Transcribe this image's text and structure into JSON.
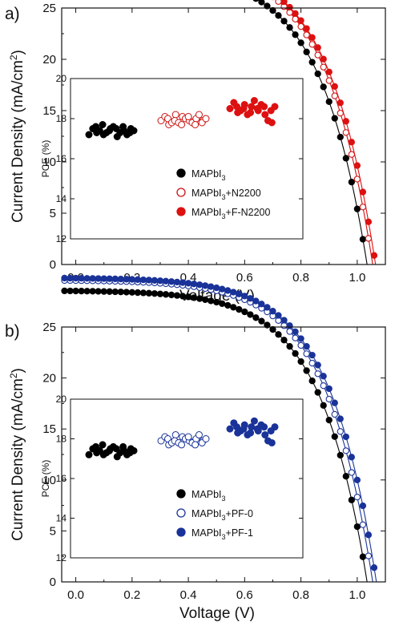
{
  "chart_data": [
    {
      "panel_label": "a)",
      "type": "line",
      "xlabel": "Voltage (V)",
      "ylabel": "Current Density (mA/cm",
      "ylabel_sup": "2",
      "ylabel_end": ")",
      "xlim": [
        -0.05,
        1.1
      ],
      "ylim": [
        0,
        25
      ],
      "xticks": [
        "0.0",
        "0.2",
        "0.4",
        "0.6",
        "0.8",
        "1.0"
      ],
      "yticks": [
        "0",
        "5",
        "10",
        "15",
        "20",
        "25"
      ],
      "series": [
        {
          "name": "MAPbI3",
          "color": "#000000",
          "marker": "filled",
          "jsc": 22.4,
          "voc": 1.035,
          "knee": 0.78,
          "curvature": 6,
          "pce": [
            17.2,
            17.5,
            17.3,
            17.6,
            17.4,
            17.2,
            17.7,
            17.3,
            17.5,
            17.4,
            17.6,
            17.1,
            17.5,
            17.3,
            17.4,
            17.6,
            17.2,
            17.5,
            17.3,
            17.4
          ]
        },
        {
          "name": "MAPbI3+N2200",
          "color": "#cc1111",
          "marker": "open",
          "jsc": 22.8,
          "voc": 1.055,
          "knee": 0.81,
          "curvature": 6,
          "pce": [
            17.9,
            18.1,
            17.7,
            18.0,
            17.8,
            18.2,
            17.9,
            17.8,
            18.1,
            17.7,
            18.0,
            17.9,
            18.1,
            17.8,
            18.0,
            17.7,
            18.2,
            17.9,
            17.8,
            18.0
          ]
        },
        {
          "name": "MAPbI3+F-N2200",
          "color": "#dd1111",
          "marker": "filled",
          "jsc": 23.0,
          "voc": 1.065,
          "knee": 0.82,
          "curvature": 6,
          "pce": [
            18.5,
            18.8,
            18.3,
            18.6,
            18.4,
            18.7,
            18.5,
            18.2,
            18.6,
            18.3,
            18.9,
            18.4,
            18.5,
            18.7,
            18.2,
            18.6,
            17.9,
            17.8,
            18.4,
            18.6
          ]
        }
      ],
      "inset": {
        "ylabel": "PCE (%)",
        "ylim": [
          12,
          20
        ],
        "yticks": [
          "12",
          "14",
          "16",
          "18",
          "20"
        ],
        "legend": [
          {
            "prefix": "MAPbI",
            "sub": "3",
            "suffix": ""
          },
          {
            "prefix": "MAPbI",
            "sub": "3",
            "suffix": "+N2200"
          },
          {
            "prefix": "MAPbI",
            "sub": "3",
            "suffix": "+F-N2200"
          }
        ]
      }
    },
    {
      "panel_label": "b)",
      "type": "line",
      "xlabel": "Voltage (V)",
      "ylabel": "Current Density (mA/cm",
      "ylabel_sup": "2",
      "ylabel_end": ")",
      "xlim": [
        -0.05,
        1.1
      ],
      "ylim": [
        0,
        25
      ],
      "xticks": [
        "0.0",
        "0.2",
        "0.4",
        "0.6",
        "0.8",
        "1.0"
      ],
      "yticks": [
        "0",
        "5",
        "10",
        "15",
        "20",
        "25"
      ],
      "series": [
        {
          "name": "MAPbI3",
          "color": "#000000",
          "marker": "filled",
          "jsc": 22.4,
          "voc": 1.035,
          "knee": 0.78,
          "curvature": 6,
          "pce": [
            17.2,
            17.5,
            17.3,
            17.6,
            17.4,
            17.2,
            17.7,
            17.3,
            17.5,
            17.4,
            17.6,
            17.1,
            17.5,
            17.3,
            17.4,
            17.6,
            17.2,
            17.5,
            17.3,
            17.4
          ]
        },
        {
          "name": "MAPbI3+PF-0",
          "color": "#1a3399",
          "marker": "open",
          "jsc": 22.8,
          "voc": 1.055,
          "knee": 0.81,
          "curvature": 6,
          "pce": [
            17.9,
            18.1,
            17.7,
            18.0,
            17.8,
            18.2,
            17.9,
            17.8,
            18.1,
            17.7,
            18.0,
            17.9,
            18.1,
            17.8,
            18.0,
            17.7,
            18.2,
            17.9,
            17.8,
            18.0
          ]
        },
        {
          "name": "MAPbI3+PF-1",
          "color": "#1a3399",
          "marker": "filled",
          "jsc": 23.1,
          "voc": 1.068,
          "knee": 0.82,
          "curvature": 6,
          "pce": [
            18.5,
            18.8,
            18.3,
            18.6,
            18.4,
            18.7,
            18.5,
            18.2,
            18.6,
            18.3,
            18.9,
            18.4,
            18.5,
            18.7,
            18.2,
            18.6,
            17.9,
            17.8,
            18.4,
            18.6
          ]
        }
      ],
      "inset": {
        "ylabel": "PCE (%)",
        "ylim": [
          12,
          20
        ],
        "yticks": [
          "12",
          "14",
          "16",
          "18",
          "20"
        ],
        "legend": [
          {
            "prefix": "MAPbI",
            "sub": "3",
            "suffix": ""
          },
          {
            "prefix": "MAPbI",
            "sub": "3",
            "suffix": "+PF-0"
          },
          {
            "prefix": "MAPbI",
            "sub": "3",
            "suffix": "+PF-1"
          }
        ]
      }
    }
  ]
}
